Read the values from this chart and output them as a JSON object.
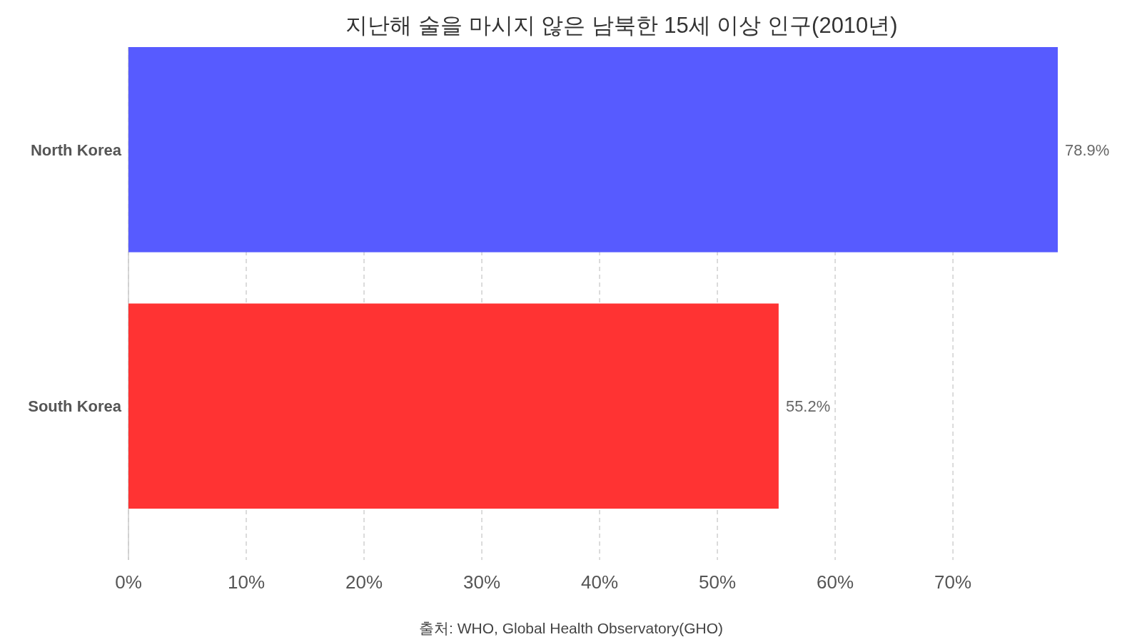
{
  "chart_data": {
    "type": "bar",
    "orientation": "horizontal",
    "title": "지난해 술을 마시지 않은 남북한 15세 이상 인구(2010년)",
    "categories": [
      "North Korea",
      "South Korea"
    ],
    "values": [
      78.9,
      55.2
    ],
    "colors": [
      "#575bff",
      "#ff3333"
    ],
    "value_labels": [
      "78.9%",
      "55.2%"
    ],
    "xlim": [
      0,
      78.9
    ],
    "xticks": [
      {
        "value": 0,
        "label": "0%"
      },
      {
        "value": 10,
        "label": "10%"
      },
      {
        "value": 20,
        "label": "20%"
      },
      {
        "value": 30,
        "label": "30%"
      },
      {
        "value": 40,
        "label": "40%"
      },
      {
        "value": 50,
        "label": "50%"
      },
      {
        "value": 60,
        "label": "60%"
      },
      {
        "value": 70,
        "label": "70%"
      }
    ],
    "grid": "x",
    "annotations": [
      "출처: WHO, Global Health Observatory(GHO)"
    ]
  }
}
